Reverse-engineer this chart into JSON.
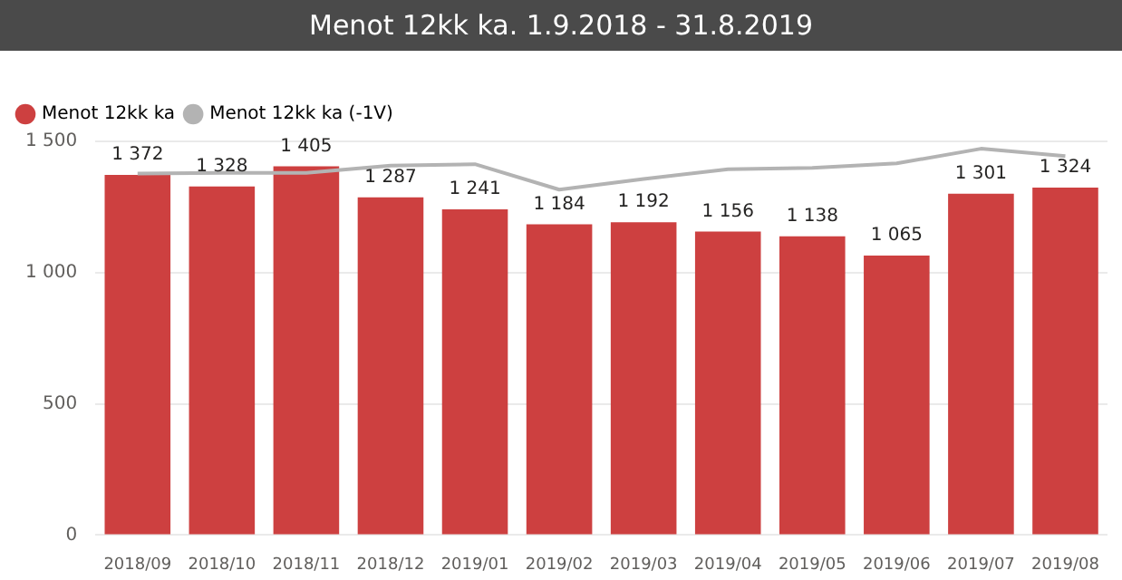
{
  "chart_data": {
    "type": "bar",
    "title": "Menot 12kk ka. 1.9.2018 - 31.8.2019",
    "categories": [
      "2018/09",
      "2018/10",
      "2018/11",
      "2018/12",
      "2019/01",
      "2019/02",
      "2019/03",
      "2019/04",
      "2019/05",
      "2019/06",
      "2019/07",
      "2019/08"
    ],
    "series": [
      {
        "name": "Menot 12kk ka",
        "color": "#cd4040",
        "values": [
          1372,
          1328,
          1405,
          1287,
          1241,
          1184,
          1192,
          1156,
          1138,
          1065,
          1301,
          1324
        ],
        "value_labels": [
          "1 372",
          "1 328",
          "1 405",
          "1 287",
          "1 241",
          "1 184",
          "1 192",
          "1 156",
          "1 138",
          "1 065",
          "1 301",
          "1 324"
        ]
      },
      {
        "name": "Menot 12kk ka (-1V)",
        "type": "line",
        "color": "#b3b3b3",
        "values": [
          1377,
          1380,
          1380,
          1408,
          1413,
          1316,
          1357,
          1394,
          1399,
          1416,
          1472,
          1444
        ]
      }
    ],
    "ylim": [
      0,
      1500
    ],
    "yticks": [
      {
        "value": 0,
        "label": "0"
      },
      {
        "value": 500,
        "label": "500"
      },
      {
        "value": 1000,
        "label": "1 000"
      },
      {
        "value": 1500,
        "label": "1 500"
      }
    ],
    "grid": "y",
    "legend": "top left",
    "marker": "none",
    "line_style": "solid"
  }
}
